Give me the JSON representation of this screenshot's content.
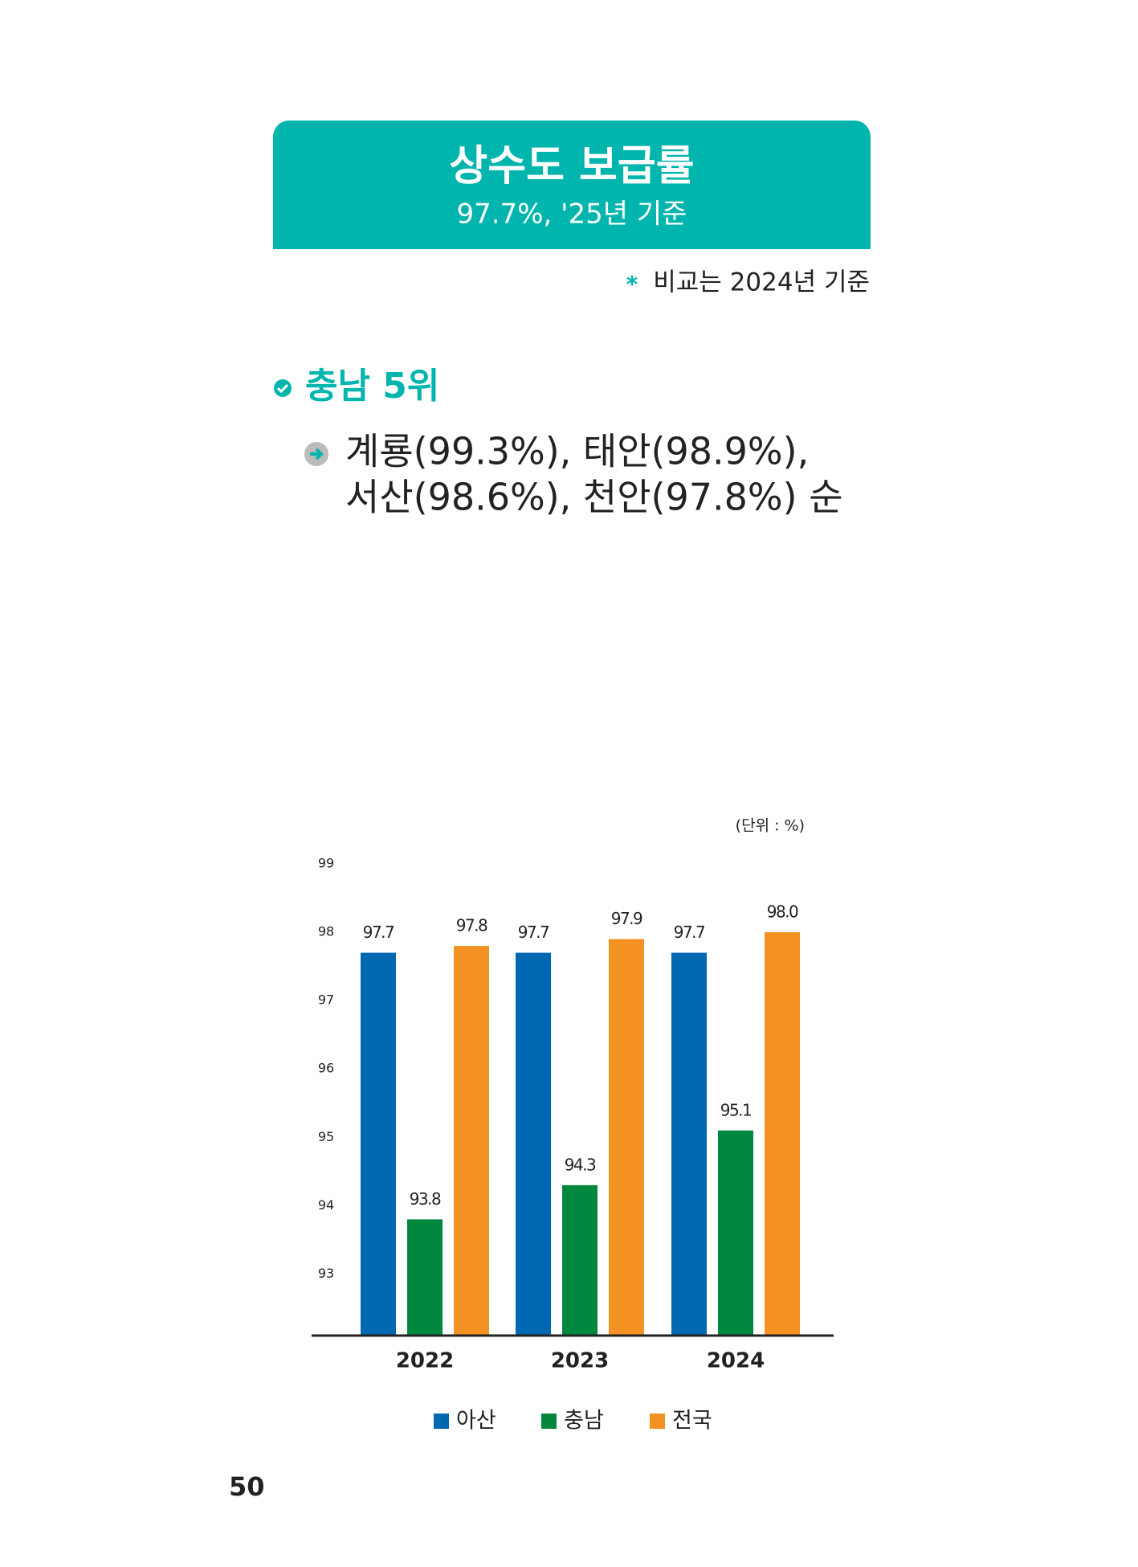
{
  "header": {
    "title": "상수도 보급률",
    "subtitle": "97.7%, '25년 기준",
    "note_mark": "*",
    "note": "비교는 2024년 기준"
  },
  "rank": {
    "title": "충남 5위",
    "lines": [
      "계룡(99.3%), 태안(98.9%),",
      "서산(98.6%), 천안(97.8%) 순"
    ]
  },
  "page_number": "50",
  "chart_data": {
    "type": "bar",
    "unit": "(단위 : %)",
    "categories": [
      "2022",
      "2023",
      "2024"
    ],
    "series": [
      {
        "name": "아산",
        "color": "#0067b1",
        "values": [
          97.7,
          97.7,
          97.7
        ]
      },
      {
        "name": "충남",
        "color": "#00873e",
        "values": [
          93.8,
          94.3,
          95.1
        ]
      },
      {
        "name": "전국",
        "color": "#f39122",
        "values": [
          97.8,
          97.9,
          98.0
        ],
        "value_labels": [
          "97.8",
          "97.9",
          "98.0"
        ]
      }
    ],
    "ylim": [
      92.1,
      99
    ],
    "yticks": [
      93,
      94,
      95,
      96,
      97,
      98,
      99
    ],
    "grid": false,
    "legend": "bottom"
  }
}
